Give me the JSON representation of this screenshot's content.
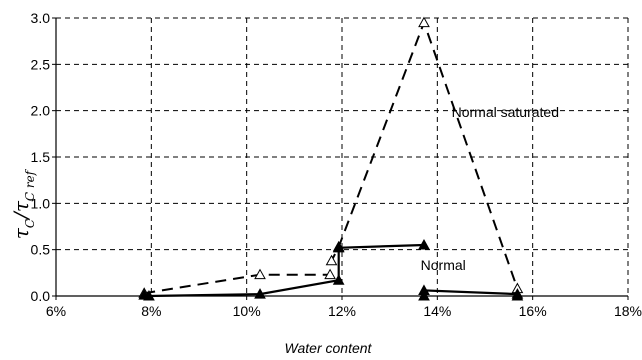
{
  "chart_data": {
    "type": "line",
    "xlabel": "Water content",
    "ylabel": {
      "main": "τ",
      "sub1": "C",
      "slash": "/",
      "main2": "τ",
      "sub2": "C ref"
    },
    "xlim": [
      0.06,
      0.18
    ],
    "ylim": [
      0,
      3.0
    ],
    "x_ticks": [
      0.06,
      0.08,
      0.1,
      0.12,
      0.14,
      0.16,
      0.18
    ],
    "x_tick_labels": [
      "6%",
      "8%",
      "10%",
      "12%",
      "14%",
      "16%",
      "18%"
    ],
    "y_ticks": [
      0,
      0.5,
      1.0,
      1.5,
      2.0,
      2.5,
      3.0
    ],
    "y_tick_labels": [
      "0.0",
      "0.5",
      "1.0",
      "1.5",
      "2.0",
      "2.5",
      "3.0"
    ],
    "grid": true,
    "series": [
      {
        "name": "Normal saturated",
        "color": "#000000",
        "line_style": "dashed",
        "marker": "open-triangle",
        "points": [
          {
            "x": 0.0785,
            "y": 0.03
          },
          {
            "x": 0.1028,
            "y": 0.23
          },
          {
            "x": 0.1175,
            "y": 0.23
          },
          {
            "x": 0.1178,
            "y": 0.38
          },
          {
            "x": 0.1193,
            "y": 0.53
          },
          {
            "x": 0.1372,
            "y": 2.95
          },
          {
            "x": 0.1568,
            "y": 0.08
          }
        ]
      },
      {
        "name": "Normal",
        "color": "#000000",
        "line_style": "solid",
        "marker": "filled-triangle",
        "segments": [
          [
            {
              "x": 0.0785,
              "y": 0.01
            },
            {
              "x": 0.0795,
              "y": 0.0
            },
            {
              "x": 0.1028,
              "y": 0.02
            },
            {
              "x": 0.1193,
              "y": 0.17
            },
            {
              "x": 0.1193,
              "y": 0.52
            },
            {
              "x": 0.1372,
              "y": 0.55
            }
          ],
          [
            {
              "x": 0.1372,
              "y": 0.0
            },
            {
              "x": 0.1372,
              "y": 0.06
            },
            {
              "x": 0.1568,
              "y": 0.02
            },
            {
              "x": 0.1568,
              "y": 0.0
            }
          ]
        ]
      }
    ],
    "annotations": [
      {
        "text": "Normal saturated",
        "x": 0.143,
        "y": 1.93
      },
      {
        "text": "Normal",
        "x": 0.1365,
        "y": 0.28
      }
    ]
  }
}
